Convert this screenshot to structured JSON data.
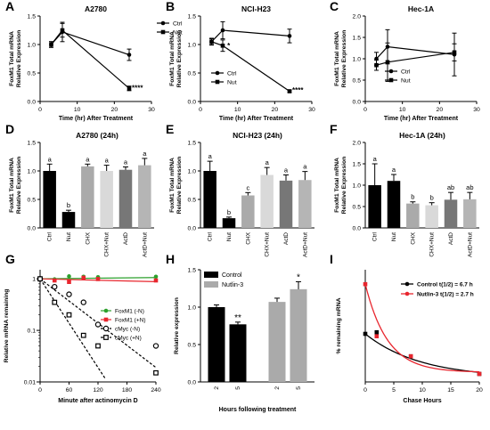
{
  "panels": {
    "A": {
      "letter": "A",
      "title": "A2780",
      "ylabel": "FoxM1 Total mRNA\nRelative Expression",
      "xlabel": "Time (hr) After Treatment"
    },
    "B": {
      "letter": "B",
      "title": "NCI-H23",
      "ylabel": "FoxM1 Total mRNA\nRelative Expression",
      "xlabel": "Time (hr) After Treatment"
    },
    "C": {
      "letter": "C",
      "title": "Hec-1A",
      "ylabel": "FoxM1 Total mRNA\nRelative Expression",
      "xlabel": "Time (hr) After Treatment"
    },
    "D": {
      "letter": "D",
      "title": "A2780 (24h)",
      "ylabel": "FoxM1 Total mRNA\nRelative Expression"
    },
    "E": {
      "letter": "E",
      "title": "NCI-H23 (24h)",
      "ylabel": "FoxM1 Total mRNA\nRelative Expression"
    },
    "F": {
      "letter": "F",
      "title": "Hec-1A (24h)",
      "ylabel": "FoxM1 Total mRNA\nRelative Expression"
    },
    "G": {
      "letter": "G",
      "ylabel": "Relative mRNA remaining",
      "xlabel": "Minute after actinomycin D"
    },
    "H": {
      "letter": "H",
      "ylabel": "Relative expression",
      "xlabel": "Hours following treatment"
    },
    "I": {
      "letter": "I",
      "ylabel": "% remaining mRNA",
      "xlabel": "Chase Hours"
    }
  },
  "chart_data": [
    {
      "panel": "A",
      "type": "line",
      "xlim": [
        0,
        30
      ],
      "ylim": [
        0,
        1.5
      ],
      "xticks": [
        0,
        10,
        20,
        30
      ],
      "yticks": [
        0.0,
        0.5,
        1.0,
        1.5
      ],
      "legend": "right",
      "series": [
        {
          "name": "Ctrl",
          "marker": "circle",
          "x": [
            3,
            6,
            24
          ],
          "y": [
            1.0,
            1.22,
            0.82
          ],
          "err": [
            0.05,
            0.17,
            0.1
          ]
        },
        {
          "name": "Nut",
          "marker": "square",
          "x": [
            3,
            6,
            24
          ],
          "y": [
            1.0,
            1.25,
            0.23
          ],
          "err": [
            0.05,
            0.12,
            0.04
          ]
        }
      ],
      "annotations": [
        {
          "text": "****",
          "x": 24,
          "y": 0.26
        }
      ]
    },
    {
      "panel": "B",
      "type": "line",
      "xlim": [
        0,
        30
      ],
      "ylim": [
        0,
        1.5
      ],
      "xticks": [
        0,
        10,
        20,
        30
      ],
      "yticks": [
        0.0,
        0.5,
        1.0,
        1.5
      ],
      "legend": "bottom-left",
      "series": [
        {
          "name": "Ctrl",
          "marker": "circle",
          "x": [
            3,
            6,
            24
          ],
          "y": [
            1.05,
            1.25,
            1.15
          ],
          "err": [
            0.05,
            0.15,
            0.12
          ]
        },
        {
          "name": "Nut",
          "marker": "square",
          "x": [
            3,
            6,
            24
          ],
          "y": [
            1.05,
            0.98,
            0.18
          ],
          "err": [
            0.06,
            0.1,
            0.02
          ]
        }
      ],
      "annotations": [
        {
          "text": "*",
          "x": 6.5,
          "y": 1.0
        },
        {
          "text": "****",
          "x": 24,
          "y": 0.22
        }
      ]
    },
    {
      "panel": "C",
      "type": "line",
      "xlim": [
        0,
        30
      ],
      "ylim": [
        0,
        2.0
      ],
      "xticks": [
        0,
        10,
        20,
        30
      ],
      "yticks": [
        0.0,
        0.5,
        1.0,
        1.5,
        2.0
      ],
      "legend": "bottom-center",
      "series": [
        {
          "name": "Ctrl",
          "marker": "circle",
          "x": [
            3,
            6,
            24
          ],
          "y": [
            1.0,
            1.28,
            1.1
          ],
          "err": [
            0.15,
            0.4,
            0.5
          ]
        },
        {
          "name": "Nut",
          "marker": "square",
          "x": [
            3,
            6,
            24
          ],
          "y": [
            0.85,
            0.92,
            1.15
          ],
          "err": [
            0.12,
            0.45,
            0.2
          ]
        }
      ]
    },
    {
      "panel": "D",
      "type": "bar",
      "categories": [
        "Ctrl",
        "Nut",
        "CHX",
        "CHX+Nut",
        "ActD",
        "ActD+Nut"
      ],
      "values": [
        1.0,
        0.28,
        1.08,
        1.0,
        1.02,
        1.1
      ],
      "err": [
        0.12,
        0.03,
        0.04,
        0.1,
        0.05,
        0.12
      ],
      "letters": [
        "a",
        "b",
        "a",
        "a",
        "a",
        "a"
      ],
      "colors": [
        "#000000",
        "#000000",
        "#aaaaaa",
        "#d9d9d9",
        "#777777",
        "#b5b5b5"
      ],
      "ylim": [
        0,
        1.5
      ],
      "yticks": [
        0.0,
        0.5,
        1.0,
        1.5
      ]
    },
    {
      "panel": "E",
      "type": "bar",
      "categories": [
        "Ctrl",
        "Nut",
        "CHX",
        "CHX+Nut",
        "ActD",
        "ActD+Nut"
      ],
      "values": [
        1.0,
        0.17,
        0.57,
        0.93,
        0.83,
        0.84
      ],
      "err": [
        0.17,
        0.02,
        0.05,
        0.13,
        0.1,
        0.15
      ],
      "letters": [
        "a",
        "b",
        "c",
        "a",
        "a",
        "a"
      ],
      "colors": [
        "#000000",
        "#000000",
        "#aaaaaa",
        "#d9d9d9",
        "#777777",
        "#b5b5b5"
      ],
      "ylim": [
        0,
        1.5
      ],
      "yticks": [
        0.0,
        0.5,
        1.0,
        1.5
      ]
    },
    {
      "panel": "F",
      "type": "bar",
      "categories": [
        "Ctrl",
        "Nut",
        "CHX",
        "CHX+Nut",
        "ActD",
        "ActD+Nut"
      ],
      "values": [
        1.0,
        1.1,
        0.57,
        0.53,
        0.66,
        0.67
      ],
      "err": [
        0.5,
        0.15,
        0.04,
        0.06,
        0.17,
        0.16
      ],
      "letters": [
        "a",
        "a",
        "b",
        "b",
        "ab",
        "ab"
      ],
      "colors": [
        "#000000",
        "#000000",
        "#aaaaaa",
        "#d9d9d9",
        "#777777",
        "#b5b5b5"
      ],
      "ylim": [
        0,
        2.0
      ],
      "yticks": [
        0.0,
        0.5,
        1.0,
        1.5,
        2.0
      ]
    },
    {
      "panel": "G",
      "type": "scatter",
      "yscale": "log",
      "xlim": [
        0,
        240
      ],
      "ylim": [
        0.01,
        1.5
      ],
      "xticks": [
        0,
        60,
        120,
        180,
        240
      ],
      "yticks": [
        0.01,
        0.1,
        1
      ],
      "legend": "center-right",
      "series": [
        {
          "name": "FoxM1 (-N)",
          "color": "#2ca02c",
          "marker": "circle",
          "fit": "solid",
          "x": [
            0,
            30,
            60,
            90,
            120,
            240
          ],
          "y": [
            1.0,
            0.98,
            1.12,
            1.1,
            1.08,
            1.1
          ],
          "fit_y": [
            1.0,
            1.06
          ]
        },
        {
          "name": "FoxM1 (+N)",
          "color": "#e8262e",
          "marker": "square",
          "fit": "solid",
          "x": [
            0,
            30,
            60,
            90,
            120,
            240
          ],
          "y": [
            1.0,
            0.93,
            0.87,
            1.05,
            0.99,
            0.93
          ],
          "fit_y": [
            1.0,
            0.88
          ]
        },
        {
          "name": "cMyc (-N)",
          "color": "#000000",
          "marker": "open-circle",
          "fit": "dashed",
          "x": [
            0,
            30,
            60,
            90,
            120,
            240
          ],
          "y": [
            1.0,
            0.7,
            0.5,
            0.35,
            0.13,
            0.05
          ],
          "halflife_min": 42
        },
        {
          "name": "cMyc (+N)",
          "color": "#000000",
          "marker": "open-square",
          "fit": "dashed",
          "x": [
            0,
            30,
            60,
            90,
            120,
            240
          ],
          "y": [
            1.0,
            0.35,
            0.2,
            0.08,
            0.05,
            0.015
          ],
          "halflife_min": 21
        }
      ]
    },
    {
      "panel": "H",
      "type": "bar",
      "categories": [
        "2",
        "5",
        "2",
        "5"
      ],
      "values": [
        1.0,
        0.77,
        1.07,
        1.24
      ],
      "err": [
        0.03,
        0.03,
        0.05,
        0.1
      ],
      "colors": [
        "#000000",
        "#000000",
        "#aaaaaa",
        "#aaaaaa"
      ],
      "annotations": [
        "",
        "**",
        "",
        "*"
      ],
      "ylim": [
        0,
        1.5
      ],
      "yticks": [
        0.0,
        0.5,
        1.0,
        1.5
      ],
      "legend": "top-left",
      "series": [
        {
          "name": "Control",
          "color": "#000000"
        },
        {
          "name": "Nutlin-3",
          "color": "#aaaaaa"
        }
      ]
    },
    {
      "panel": "I",
      "type": "scatter",
      "xlim": [
        0,
        20
      ],
      "ylim": [
        0.4,
        1.8
      ],
      "xticks": [
        0,
        5,
        10,
        15,
        20
      ],
      "legend": "top-right",
      "series": [
        {
          "name": "Control t(1/2) = 6.7 h",
          "color": "#000000",
          "x": [
            0,
            2,
            8,
            20
          ],
          "y": [
            1.0,
            1.02,
            0.72,
            0.5
          ],
          "plateau": 0.45,
          "halflife_h": 6.7
        },
        {
          "name": "Nutlin-3 t(1/2) = 2.7 h",
          "color": "#e8262e",
          "x": [
            0,
            2,
            8,
            20
          ],
          "y": [
            1.62,
            0.97,
            0.72,
            0.5
          ],
          "plateau": 0.52,
          "halflife_h": 2.7
        }
      ]
    }
  ]
}
